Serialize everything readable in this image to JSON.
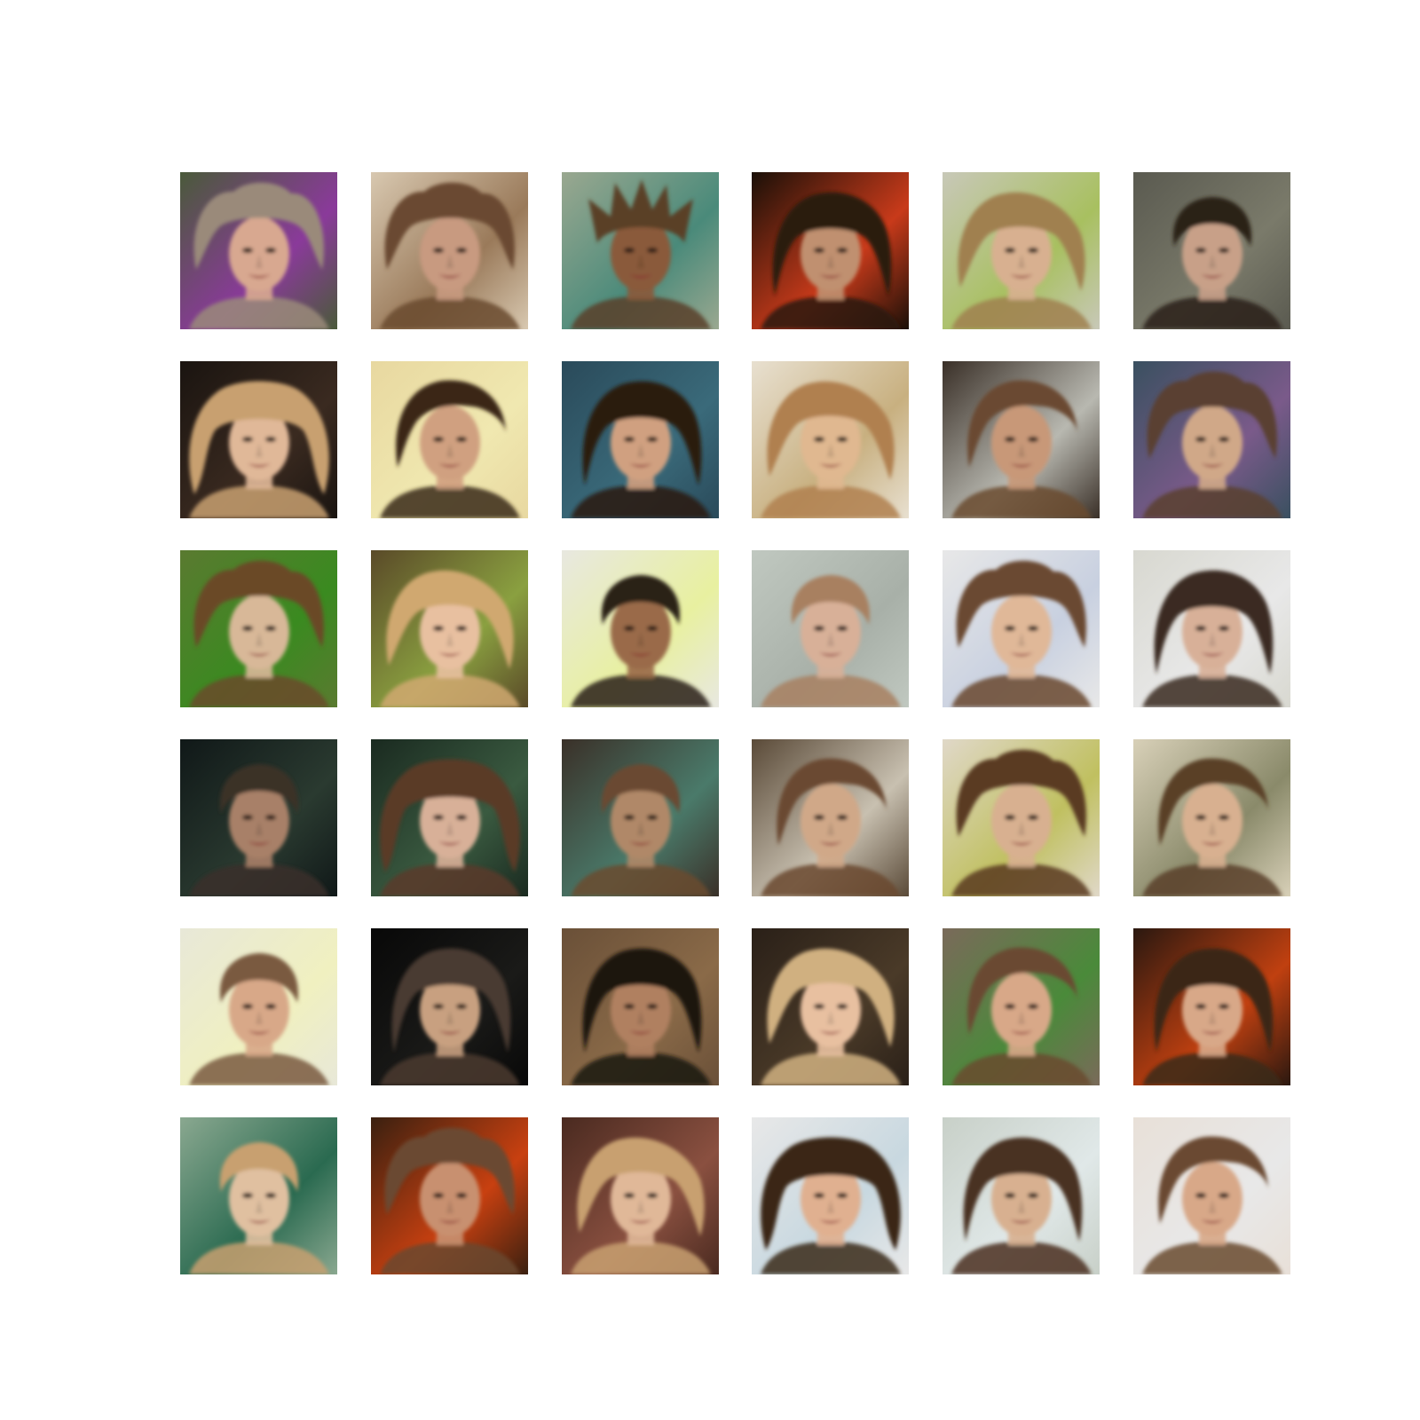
{
  "grid": {
    "rows": 6,
    "columns": 6,
    "tiles": [
      {
        "bg": "#4a5a3a",
        "accent": "#8a3a9a",
        "hair": "#9a8a7a",
        "skin": "#d8a890",
        "hairStyle": "wild"
      },
      {
        "bg": "#d8c8b0",
        "accent": "#9a7a5a",
        "hair": "#6a4a30",
        "skin": "#c89a80",
        "hairStyle": "wild"
      },
      {
        "bg": "#9aa890",
        "accent": "#4a8a7a",
        "hair": "#5a4028",
        "skin": "#8a5a3a",
        "hairStyle": "spiky"
      },
      {
        "bg": "#1a1008",
        "accent": "#c83a1a",
        "hair": "#2a1a10",
        "skin": "#c09070",
        "hairStyle": "dark"
      },
      {
        "bg": "#c8c8b8",
        "accent": "#a8c060",
        "hair": "#a08050",
        "skin": "#d8b090",
        "hairStyle": "blonde"
      },
      {
        "bg": "#5a5a50",
        "accent": "#7a7a6a",
        "hair": "#2a2018",
        "skin": "#c8a088",
        "hairStyle": "short"
      },
      {
        "bg": "#1a1410",
        "accent": "#3a2a20",
        "hair": "#c8a070",
        "skin": "#e0b898",
        "hairStyle": "curly"
      },
      {
        "bg": "#e8d8a0",
        "accent": "#f0e8b0",
        "hair": "#3a2818",
        "skin": "#d0a080",
        "hairStyle": "side"
      },
      {
        "bg": "#2a4a5a",
        "accent": "#3a6a7a",
        "hair": "#2a1a10",
        "skin": "#d0a080",
        "hairStyle": "dark"
      },
      {
        "bg": "#e8e0d0",
        "accent": "#c8b080",
        "hair": "#b08050",
        "skin": "#e0b890",
        "hairStyle": "blonde"
      },
      {
        "bg": "#3a3028",
        "accent": "#b8b8b0",
        "hair": "#6a4a30",
        "skin": "#c89878",
        "hairStyle": "side"
      },
      {
        "bg": "#3a5060",
        "accent": "#7a5a8a",
        "hair": "#5a4030",
        "skin": "#d0a888",
        "hairStyle": "wild"
      },
      {
        "bg": "#5a7a30",
        "accent": "#3a8a20",
        "hair": "#6a4a28",
        "skin": "#d8b898",
        "hairStyle": "wild"
      },
      {
        "bg": "#5a4a28",
        "accent": "#8aa040",
        "hair": "#d0a870",
        "skin": "#e8c0a0",
        "hairStyle": "blonde"
      },
      {
        "bg": "#e8e8e0",
        "accent": "#e8f0a0",
        "hair": "#2a2018",
        "skin": "#9a6a48",
        "hairStyle": "short"
      },
      {
        "bg": "#c0c8c0",
        "accent": "#a8b0a8",
        "hair": "#a88060",
        "skin": "#d8b098",
        "hairStyle": "short"
      },
      {
        "bg": "#e8e8e8",
        "accent": "#c8d0e0",
        "hair": "#6a4830",
        "skin": "#e0b898",
        "hairStyle": "wild"
      },
      {
        "bg": "#d8d8d0",
        "accent": "#e8e8e8",
        "hair": "#3a2a20",
        "skin": "#d8b098",
        "hairStyle": "dark"
      },
      {
        "bg": "#101818",
        "accent": "#2a3a30",
        "hair": "#3a3028",
        "skin": "#a88068",
        "hairStyle": "short"
      },
      {
        "bg": "#1a2a20",
        "accent": "#3a5a40",
        "hair": "#5a3a28",
        "skin": "#d8b098",
        "hairStyle": "curly"
      },
      {
        "bg": "#3a3028",
        "accent": "#4a7a6a",
        "hair": "#6a4a30",
        "skin": "#b08868",
        "hairStyle": "short"
      },
      {
        "bg": "#5a4a38",
        "accent": "#c8c0b0",
        "hair": "#6a4830",
        "skin": "#d0a888",
        "hairStyle": "side"
      },
      {
        "bg": "#e0d8c8",
        "accent": "#c0c060",
        "hair": "#5a3a20",
        "skin": "#d8b090",
        "hairStyle": "wild"
      },
      {
        "bg": "#d8d0b8",
        "accent": "#8a8a6a",
        "hair": "#5a4028",
        "skin": "#d8b090",
        "hairStyle": "side"
      },
      {
        "bg": "#e8e8d8",
        "accent": "#f0f0c0",
        "hair": "#7a5a40",
        "skin": "#d8a888",
        "hairStyle": "short"
      },
      {
        "bg": "#080808",
        "accent": "#1a1a18",
        "hair": "#4a3a30",
        "skin": "#c8a080",
        "hairStyle": "dark"
      },
      {
        "bg": "#6a5038",
        "accent": "#8a6a48",
        "hair": "#1a1410",
        "skin": "#b08060",
        "hairStyle": "dark"
      },
      {
        "bg": "#2a2018",
        "accent": "#4a3a28",
        "hair": "#d0b080",
        "skin": "#e8c0a0",
        "hairStyle": "blonde"
      },
      {
        "bg": "#7a6a5a",
        "accent": "#4a8a3a",
        "hair": "#6a4a30",
        "skin": "#d8a888",
        "hairStyle": "side"
      },
      {
        "bg": "#2a1810",
        "accent": "#c04010",
        "hair": "#3a2818",
        "skin": "#d8a888",
        "hairStyle": "dark"
      },
      {
        "bg": "#8aa890",
        "accent": "#2a6a50",
        "hair": "#c8a070",
        "skin": "#e0c0a0",
        "hairStyle": "short"
      },
      {
        "bg": "#3a2010",
        "accent": "#c84010",
        "hair": "#6a4830",
        "skin": "#c89070",
        "hairStyle": "wild"
      },
      {
        "bg": "#4a2a20",
        "accent": "#8a5040",
        "hair": "#c8a070",
        "skin": "#e0b898",
        "hairStyle": "blonde"
      },
      {
        "bg": "#e8e8e8",
        "accent": "#c8d8e0",
        "hair": "#3a2818",
        "skin": "#e0b090",
        "hairStyle": "curly"
      },
      {
        "bg": "#c8d0c8",
        "accent": "#e0e8e8",
        "hair": "#4a3020",
        "skin": "#d8b090",
        "hairStyle": "dark"
      },
      {
        "bg": "#e8e0d8",
        "accent": "#e8e8e8",
        "hair": "#6a4a30",
        "skin": "#d8a888",
        "hairStyle": "side"
      }
    ]
  }
}
